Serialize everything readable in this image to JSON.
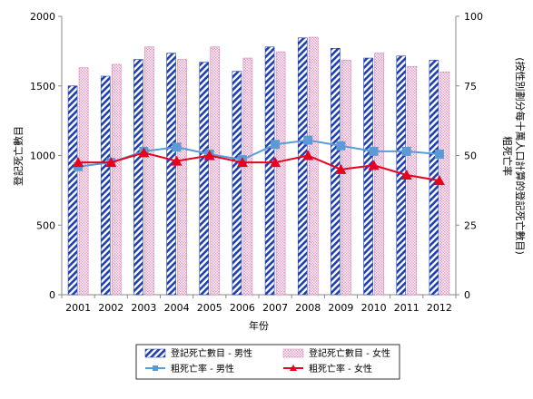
{
  "chart_data": {
    "type": "bar",
    "categories": [
      "2001",
      "2002",
      "2003",
      "2004",
      "2005",
      "2006",
      "2007",
      "2008",
      "2009",
      "2010",
      "2011",
      "2012"
    ],
    "xlabel": "年份",
    "ylabel_left": "登記死亡數目",
    "ylabel_right": "粗死亡率",
    "ylabel_right_sub": "(按性別劃分每十萬人口計算的登記死亡數目)",
    "ylim_left": [
      0,
      2000
    ],
    "yticks_left": [
      0,
      500,
      1000,
      1500,
      2000
    ],
    "ylim_right": [
      0,
      100
    ],
    "yticks_right": [
      0,
      25,
      50,
      75,
      100
    ],
    "grid": false,
    "legend_position": "bottom",
    "series": [
      {
        "name": "登記死亡數目 - 男性",
        "kind": "bar",
        "axis": "left",
        "values": [
          1500,
          1570,
          1690,
          1735,
          1670,
          1605,
          1780,
          1845,
          1770,
          1700,
          1715,
          1685
        ]
      },
      {
        "name": "登記死亡數目 - 女性",
        "kind": "bar",
        "axis": "left",
        "values": [
          1630,
          1655,
          1780,
          1690,
          1780,
          1700,
          1745,
          1850,
          1685,
          1735,
          1640,
          1600
        ]
      },
      {
        "name": "粗死亡率 - 男性",
        "kind": "line",
        "axis": "right",
        "values": [
          46,
          47.5,
          51.5,
          53,
          50.5,
          48.5,
          54,
          55.5,
          53.5,
          51.5,
          51.5,
          50.5
        ]
      },
      {
        "name": "粗死亡率 - 女性",
        "kind": "line",
        "axis": "right",
        "values": [
          47.5,
          47.5,
          51,
          48,
          50,
          47.5,
          47.5,
          50,
          45,
          46.5,
          43,
          41
        ]
      }
    ],
    "colors": {
      "male_bar": "#1f3fb0",
      "female_bar": "#e79ac6",
      "male_line": "#5b9bd5",
      "female_line": "#e8001c"
    }
  }
}
